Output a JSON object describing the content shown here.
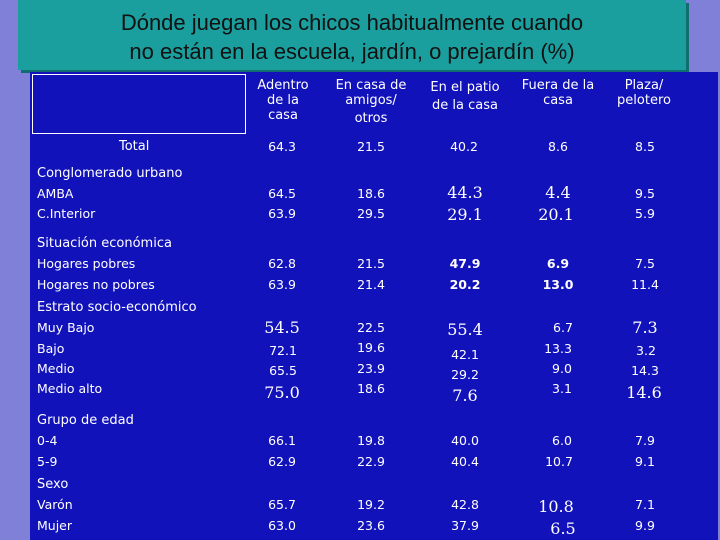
{
  "slide": {
    "title_line1": "Dónde juegan los chicos habitualmente cuando",
    "title_line2": "no están en la escuela, jardín, o prejardín (%)"
  },
  "columns": [
    {
      "line1": "Adentro",
      "line2": "de la",
      "line3": "casa"
    },
    {
      "line1": "En casa de",
      "line2": "amigos/",
      "line3": "otros"
    },
    {
      "line1": "En el patio",
      "line2": "de la casa"
    },
    {
      "line1": "Fuera de la",
      "line2": "casa"
    },
    {
      "line1": "Plaza/",
      "line2": "pelotero"
    }
  ],
  "total": {
    "label": "Total",
    "values": [
      "64.3",
      "21.5",
      "40.2",
      "8.6",
      "8.5"
    ]
  },
  "groups": [
    {
      "label": "Conglomerado urbano",
      "rows": [
        {
          "label": "AMBA",
          "values": [
            "64.5",
            "18.6",
            "44.3",
            "4.4",
            "9.5"
          ]
        },
        {
          "label": "C.Interior",
          "values": [
            "63.9",
            "29.5",
            "29.1",
            "20.1",
            "5.9"
          ]
        }
      ]
    },
    {
      "label": "Situación económica",
      "rows": [
        {
          "label": "Hogares pobres",
          "values": [
            "62.8",
            "21.5",
            "47.9",
            "6.9",
            "7.5"
          ]
        },
        {
          "label": "Hogares no pobres",
          "values": [
            "63.9",
            "21.4",
            "20.2",
            "13.0",
            "11.4"
          ]
        }
      ]
    },
    {
      "label": "Estrato socio-económico",
      "rows": [
        {
          "label": "Muy Bajo",
          "values": [
            "54.5",
            "22.5",
            "55.4",
            "6.7",
            "7.3"
          ]
        },
        {
          "label": "Bajo",
          "values": [
            "72.1",
            "19.6",
            "42.1",
            "13.3",
            "3.2"
          ]
        },
        {
          "label": "Medio",
          "values": [
            "65.5",
            "23.9",
            "29.2",
            "9.0",
            "14.3"
          ]
        },
        {
          "label": "Medio alto",
          "values": [
            "75.0",
            "18.6",
            "7.6",
            "3.1",
            "14.6"
          ]
        }
      ]
    },
    {
      "label": "Grupo de edad",
      "rows": [
        {
          "label": "0-4",
          "values": [
            "66.1",
            "19.8",
            "40.0",
            "6.0",
            "7.9"
          ]
        },
        {
          "label": "5-9",
          "values": [
            "62.9",
            "22.9",
            "40.4",
            "10.7",
            "9.1"
          ]
        }
      ]
    },
    {
      "label": "Sexo",
      "rows": [
        {
          "label": "Varón",
          "values": [
            "65.7",
            "19.2",
            "42.8",
            "10.8",
            "7.1"
          ]
        },
        {
          "label": "Mujer",
          "values": [
            "63.0",
            "23.6",
            "37.9",
            "6.5",
            "9.9"
          ]
        }
      ]
    }
  ]
}
